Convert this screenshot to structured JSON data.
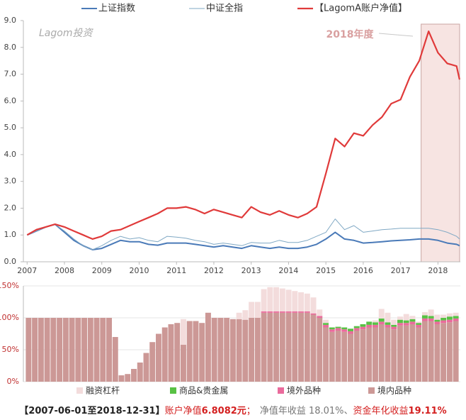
{
  "chart_data": [
    {
      "type": "line",
      "watermark": "Lagom投资",
      "highlight": {
        "label": "2018年度",
        "xlim": [
          2017.55,
          2018.58
        ],
        "color": "#f7e4e2"
      },
      "x": [
        2007,
        2007.25,
        2007.5,
        2007.75,
        2008,
        2008.25,
        2008.5,
        2008.75,
        2009,
        2009.25,
        2009.5,
        2009.75,
        2010,
        2010.25,
        2010.5,
        2010.75,
        2011,
        2011.25,
        2011.5,
        2011.75,
        2012,
        2012.25,
        2012.5,
        2012.75,
        2013,
        2013.25,
        2013.5,
        2013.75,
        2014,
        2014.25,
        2014.5,
        2014.75,
        2015,
        2015.25,
        2015.5,
        2015.75,
        2016,
        2016.25,
        2016.5,
        2016.75,
        2017,
        2017.25,
        2017.5,
        2017.75,
        2018,
        2018.25,
        2018.5,
        2018.58
      ],
      "series": [
        {
          "name": "上证指数",
          "color": "#4a7ab8",
          "width": 2,
          "values": [
            1.0,
            1.15,
            1.3,
            1.4,
            1.1,
            0.8,
            0.6,
            0.45,
            0.5,
            0.65,
            0.8,
            0.75,
            0.75,
            0.65,
            0.62,
            0.7,
            0.7,
            0.7,
            0.65,
            0.6,
            0.55,
            0.6,
            0.55,
            0.5,
            0.6,
            0.55,
            0.5,
            0.55,
            0.5,
            0.5,
            0.55,
            0.65,
            0.85,
            1.1,
            0.85,
            0.8,
            0.7,
            0.72,
            0.75,
            0.78,
            0.8,
            0.82,
            0.85,
            0.85,
            0.8,
            0.7,
            0.65,
            0.6
          ]
        },
        {
          "name": "中证全指",
          "color": "#7fa8c4",
          "width": 1,
          "values": [
            1.0,
            1.15,
            1.3,
            1.4,
            1.15,
            0.85,
            0.6,
            0.45,
            0.6,
            0.8,
            0.95,
            0.85,
            0.9,
            0.8,
            0.75,
            0.95,
            0.92,
            0.88,
            0.8,
            0.75,
            0.65,
            0.7,
            0.65,
            0.6,
            0.72,
            0.7,
            0.7,
            0.8,
            0.72,
            0.72,
            0.8,
            0.95,
            1.1,
            1.6,
            1.2,
            1.35,
            1.1,
            1.15,
            1.2,
            1.22,
            1.25,
            1.25,
            1.25,
            1.25,
            1.2,
            1.1,
            0.95,
            0.85
          ]
        },
        {
          "name": "【LagomA账户净值】",
          "color": "#e03a3a",
          "width": 2.2,
          "values": [
            1.0,
            1.2,
            1.3,
            1.4,
            1.3,
            1.15,
            1.0,
            0.85,
            0.95,
            1.15,
            1.2,
            1.35,
            1.5,
            1.65,
            1.8,
            2.0,
            2.0,
            2.05,
            1.95,
            1.8,
            1.95,
            1.85,
            1.75,
            1.65,
            2.05,
            1.85,
            1.75,
            1.9,
            1.75,
            1.65,
            1.8,
            2.05,
            3.3,
            4.6,
            4.3,
            4.8,
            4.7,
            5.1,
            5.4,
            5.9,
            6.05,
            6.9,
            7.5,
            8.6,
            7.8,
            7.4,
            7.3,
            6.8
          ]
        }
      ],
      "xlim": [
        2006.9,
        2018.6
      ],
      "xticks": [
        2007,
        2008,
        2009,
        2010,
        2011,
        2012,
        2013,
        2014,
        2015,
        2016,
        2017,
        2018
      ],
      "ylim": [
        0,
        9
      ],
      "yticks": [
        {
          "value": 0,
          "label": "0.0"
        },
        {
          "value": 1,
          "label": "1.0"
        },
        {
          "value": 2,
          "label": "2.0"
        },
        {
          "value": 3,
          "label": "3.0"
        },
        {
          "value": 4,
          "label": "4.0"
        },
        {
          "value": 5,
          "label": "5.0"
        },
        {
          "value": 6,
          "label": "6.0"
        },
        {
          "value": 7,
          "label": "7.0"
        },
        {
          "value": 8,
          "label": "8.0"
        },
        {
          "value": 9,
          "label": "9.0"
        }
      ]
    },
    {
      "type": "bar",
      "stacked": true,
      "grid": true,
      "series": [
        {
          "name": "境内品种",
          "color": "#cc9896",
          "values": [
            100,
            100,
            100,
            100,
            100,
            100,
            100,
            100,
            100,
            100,
            100,
            100,
            100,
            100,
            70,
            10,
            12,
            20,
            30,
            45,
            62,
            75,
            85,
            90,
            92,
            58,
            95,
            95,
            92,
            108,
            100,
            100,
            100,
            98,
            98,
            97,
            100,
            100,
            108,
            108,
            108,
            108,
            108,
            108,
            108,
            108,
            105,
            100,
            85,
            78,
            80,
            78,
            75,
            80,
            82,
            85,
            85,
            90,
            85,
            82,
            88,
            88,
            90,
            85,
            95,
            95,
            90,
            92,
            93,
            95
          ]
        },
        {
          "name": "境外品种",
          "color": "#ea6b9c",
          "values": [
            0,
            0,
            0,
            0,
            0,
            0,
            0,
            0,
            0,
            0,
            0,
            0,
            0,
            0,
            0,
            0,
            0,
            0,
            0,
            0,
            0,
            0,
            0,
            0,
            0,
            0,
            0,
            0,
            0,
            0,
            0,
            0,
            0,
            0,
            0,
            0,
            0,
            0,
            2,
            2,
            2,
            2,
            2,
            2,
            2,
            2,
            2,
            3,
            4,
            4,
            4,
            4,
            4,
            4,
            4,
            4,
            4,
            4,
            4,
            4,
            4,
            4,
            4,
            4,
            4,
            4,
            4,
            4,
            4,
            4
          ]
        },
        {
          "name": "商品&贵金属",
          "color": "#58c144",
          "values": [
            0,
            0,
            0,
            0,
            0,
            0,
            0,
            0,
            0,
            0,
            0,
            0,
            0,
            0,
            0,
            0,
            0,
            0,
            0,
            0,
            0,
            0,
            0,
            0,
            0,
            0,
            0,
            0,
            0,
            0,
            0,
            0,
            0,
            0,
            0,
            0,
            0,
            0,
            0,
            0,
            0,
            0,
            0,
            0,
            0,
            0,
            0,
            0,
            3,
            3,
            2,
            3,
            4,
            3,
            4,
            5,
            4,
            5,
            4,
            3,
            5,
            4,
            4,
            3,
            5,
            4,
            3,
            4,
            5,
            4
          ]
        },
        {
          "name": "融资杠杆",
          "color": "#f3dcdc",
          "values": [
            0,
            0,
            0,
            0,
            0,
            0,
            0,
            0,
            0,
            0,
            0,
            0,
            0,
            0,
            0,
            0,
            0,
            0,
            0,
            0,
            0,
            0,
            0,
            0,
            0,
            40,
            0,
            0,
            0,
            0,
            0,
            0,
            0,
            0,
            10,
            15,
            25,
            25,
            35,
            38,
            38,
            36,
            34,
            32,
            30,
            28,
            25,
            10,
            5,
            0,
            0,
            0,
            0,
            0,
            0,
            0,
            3,
            15,
            15,
            8,
            5,
            10,
            5,
            2,
            5,
            10,
            8,
            5,
            5,
            5
          ]
        }
      ],
      "ylim": [
        0,
        150
      ],
      "yticks": [
        {
          "value": 0,
          "label": "0%"
        },
        {
          "value": 50,
          "label": "50%"
        },
        {
          "value": 100,
          "label": "100%"
        },
        {
          "value": 150,
          "label": "150%"
        }
      ]
    }
  ],
  "footer": [
    "【2007-06-01至2018-12-31】",
    "账户净值",
    "6.8082元",
    "；",
    "净值年收益 18.01%、",
    "资金年化收益",
    "19.11%"
  ]
}
